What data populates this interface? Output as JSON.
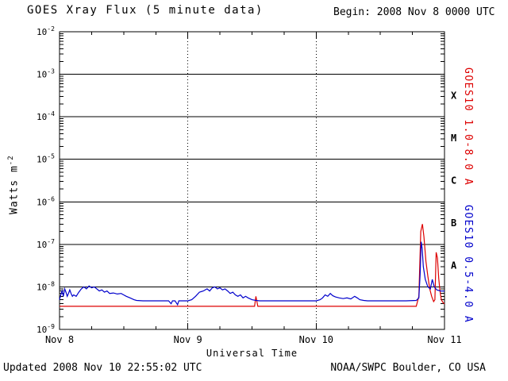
{
  "header": {
    "title": "GOES Xray Flux (5 minute data)",
    "begin_label": "Begin: 2008 Nov 8 0000 UTC"
  },
  "footer": {
    "updated": "Updated 2008 Nov 10 22:55:02 UTC",
    "credit": "NOAA/SWPC Boulder, CO USA"
  },
  "chart_data": {
    "type": "line",
    "title": "GOES Xray Flux (5 minute data)",
    "xlabel": "Universal Time",
    "ylabel_base": "Watts m",
    "ylabel_exp": "-2",
    "y_tick_base": "10",
    "y_ticks": [
      -2,
      -3,
      -4,
      -5,
      -6,
      -7,
      -8,
      -9
    ],
    "ylim_log": [
      -9,
      -2
    ],
    "x_range_days": [
      0,
      3
    ],
    "x_ticks": [
      {
        "t": 0,
        "label": "Nov 8"
      },
      {
        "t": 1,
        "label": "Nov 9"
      },
      {
        "t": 2,
        "label": "Nov 10"
      },
      {
        "t": 3,
        "label": "Nov 11"
      }
    ],
    "day_gridlines": [
      1,
      2
    ],
    "flare_classes": [
      {
        "label": "X",
        "log_center": -3.5
      },
      {
        "label": "M",
        "log_center": -4.5
      },
      {
        "label": "C",
        "log_center": -5.5
      },
      {
        "label": "B",
        "log_center": -6.5
      },
      {
        "label": "A",
        "log_center": -7.5
      }
    ],
    "series": [
      {
        "name": "GOES10 1.0-8.0 A",
        "color": "#dd0000",
        "points": [
          [
            0.0,
            3.5e-09
          ],
          [
            0.3,
            3.5e-09
          ],
          [
            0.6,
            3.5e-09
          ],
          [
            0.9,
            3.5e-09
          ],
          [
            1.2,
            3.5e-09
          ],
          [
            1.5,
            3.5e-09
          ],
          [
            1.52,
            3.5e-09
          ],
          [
            1.53,
            6e-09
          ],
          [
            1.545,
            3.5e-09
          ],
          [
            1.8,
            3.5e-09
          ],
          [
            2.1,
            3.5e-09
          ],
          [
            2.4,
            3.5e-09
          ],
          [
            2.7,
            3.5e-09
          ],
          [
            2.78,
            3.5e-09
          ],
          [
            2.8,
            6e-09
          ],
          [
            2.815,
            2e-07
          ],
          [
            2.828,
            3e-07
          ],
          [
            2.84,
            1.5e-07
          ],
          [
            2.855,
            4e-08
          ],
          [
            2.87,
            1.8e-08
          ],
          [
            2.885,
            9e-09
          ],
          [
            2.9,
            6e-09
          ],
          [
            2.915,
            4.5e-09
          ],
          [
            2.925,
            5e-09
          ],
          [
            2.935,
            6.5e-08
          ],
          [
            2.945,
            4.8e-08
          ],
          [
            2.955,
            1.6e-08
          ],
          [
            2.965,
            8e-09
          ],
          [
            2.975,
            5e-09
          ],
          [
            2.99,
            4.2e-09
          ],
          [
            3.0,
            4e-09
          ]
        ]
      },
      {
        "name": "GOES10 0.5-4.0 A",
        "color": "#0000cc",
        "points": [
          [
            0.0,
            5e-09
          ],
          [
            0.01,
            6.5e-09
          ],
          [
            0.02,
            8e-09
          ],
          [
            0.03,
            6e-09
          ],
          [
            0.04,
            9e-09
          ],
          [
            0.05,
            7.5e-09
          ],
          [
            0.06,
            6e-09
          ],
          [
            0.07,
            7e-09
          ],
          [
            0.08,
            8.5e-09
          ],
          [
            0.09,
            7e-09
          ],
          [
            0.1,
            6e-09
          ],
          [
            0.11,
            6.5e-09
          ],
          [
            0.13,
            6e-09
          ],
          [
            0.15,
            7.5e-09
          ],
          [
            0.17,
            9e-09
          ],
          [
            0.19,
            1e-08
          ],
          [
            0.21,
            9e-09
          ],
          [
            0.23,
            1.05e-08
          ],
          [
            0.25,
            9.5e-09
          ],
          [
            0.27,
            1e-08
          ],
          [
            0.29,
            9e-09
          ],
          [
            0.31,
            8e-09
          ],
          [
            0.33,
            8.5e-09
          ],
          [
            0.35,
            7.5e-09
          ],
          [
            0.37,
            8e-09
          ],
          [
            0.39,
            7e-09
          ],
          [
            0.42,
            7.2e-09
          ],
          [
            0.45,
            6.8e-09
          ],
          [
            0.48,
            7e-09
          ],
          [
            0.5,
            6.5e-09
          ],
          [
            0.52,
            6e-09
          ],
          [
            0.55,
            5.5e-09
          ],
          [
            0.58,
            5e-09
          ],
          [
            0.6,
            4.8e-09
          ],
          [
            0.65,
            4.7e-09
          ],
          [
            0.7,
            4.7e-09
          ],
          [
            0.75,
            4.7e-09
          ],
          [
            0.8,
            4.7e-09
          ],
          [
            0.85,
            4.7e-09
          ],
          [
            0.87,
            4e-09
          ],
          [
            0.88,
            4.7e-09
          ],
          [
            0.9,
            4.7e-09
          ],
          [
            0.92,
            3.8e-09
          ],
          [
            0.93,
            4.7e-09
          ],
          [
            0.95,
            4.7e-09
          ],
          [
            1.0,
            4.7e-09
          ],
          [
            1.03,
            5e-09
          ],
          [
            1.06,
            6e-09
          ],
          [
            1.09,
            7.5e-09
          ],
          [
            1.12,
            8e-09
          ],
          [
            1.15,
            9e-09
          ],
          [
            1.17,
            8e-09
          ],
          [
            1.19,
            9.5e-09
          ],
          [
            1.21,
            1e-08
          ],
          [
            1.23,
            9e-09
          ],
          [
            1.25,
            9.5e-09
          ],
          [
            1.27,
            8.5e-09
          ],
          [
            1.29,
            9e-09
          ],
          [
            1.31,
            8e-09
          ],
          [
            1.33,
            7e-09
          ],
          [
            1.35,
            7.5e-09
          ],
          [
            1.37,
            6.5e-09
          ],
          [
            1.39,
            6e-09
          ],
          [
            1.41,
            6.5e-09
          ],
          [
            1.43,
            5.5e-09
          ],
          [
            1.45,
            6e-09
          ],
          [
            1.47,
            5.5e-09
          ],
          [
            1.5,
            5e-09
          ],
          [
            1.53,
            4.8e-09
          ],
          [
            1.56,
            4.7e-09
          ],
          [
            1.6,
            4.7e-09
          ],
          [
            1.7,
            4.7e-09
          ],
          [
            1.8,
            4.7e-09
          ],
          [
            1.9,
            4.7e-09
          ],
          [
            2.0,
            4.7e-09
          ],
          [
            2.03,
            5e-09
          ],
          [
            2.05,
            5.5e-09
          ],
          [
            2.07,
            6.5e-09
          ],
          [
            2.09,
            6e-09
          ],
          [
            2.11,
            7e-09
          ],
          [
            2.13,
            6.2e-09
          ],
          [
            2.15,
            5.8e-09
          ],
          [
            2.18,
            5.5e-09
          ],
          [
            2.21,
            5.3e-09
          ],
          [
            2.24,
            5.5e-09
          ],
          [
            2.27,
            5.2e-09
          ],
          [
            2.3,
            6e-09
          ],
          [
            2.32,
            5.5e-09
          ],
          [
            2.34,
            5e-09
          ],
          [
            2.37,
            4.8e-09
          ],
          [
            2.4,
            4.7e-09
          ],
          [
            2.5,
            4.7e-09
          ],
          [
            2.6,
            4.7e-09
          ],
          [
            2.7,
            4.7e-09
          ],
          [
            2.78,
            4.8e-09
          ],
          [
            2.8,
            5.5e-09
          ],
          [
            2.81,
            2e-08
          ],
          [
            2.818,
            1.15e-07
          ],
          [
            2.826,
            8e-08
          ],
          [
            2.835,
            3e-08
          ],
          [
            2.85,
            1.5e-08
          ],
          [
            2.87,
            1e-08
          ],
          [
            2.89,
            9e-09
          ],
          [
            2.905,
            1.5e-08
          ],
          [
            2.92,
            1e-08
          ],
          [
            2.94,
            8.5e-09
          ],
          [
            2.97,
            8e-09
          ],
          [
            3.0,
            8e-09
          ]
        ]
      }
    ]
  }
}
